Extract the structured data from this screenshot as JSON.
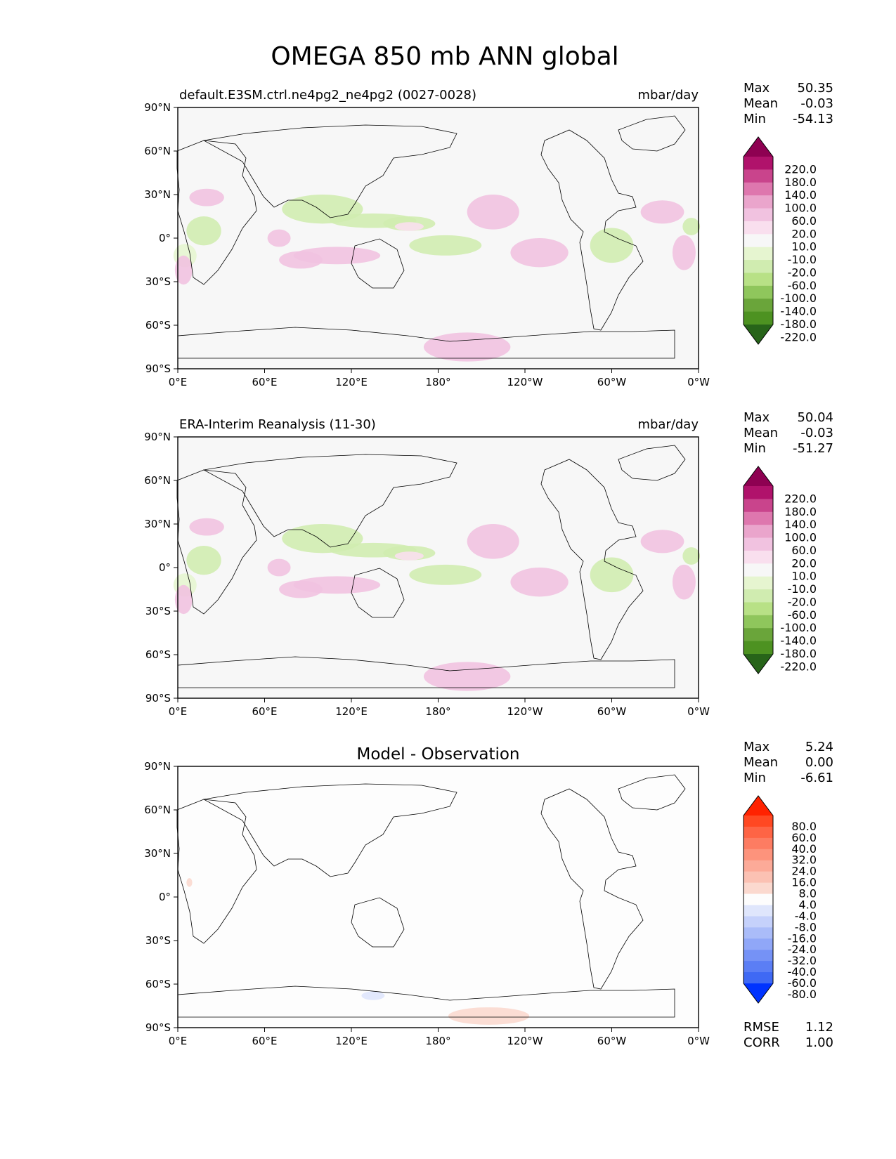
{
  "figure": {
    "title": "OMEGA 850 mb ANN global"
  },
  "chart_data": [
    {
      "type": "heatmap",
      "panel": "test",
      "title": "default.E3SM.ctrl.ne4pg2_ne4pg2 (0027-0028)",
      "units": "mbar/day",
      "stats": {
        "Max": "50.35",
        "Mean": "-0.03",
        "Min": "-54.13"
      },
      "x_ticks": [
        "0°E",
        "60°E",
        "120°E",
        "180°",
        "120°W",
        "60°W",
        "0°W"
      ],
      "y_ticks": [
        "90°N",
        "60°N",
        "30°N",
        "0°",
        "30°S",
        "60°S",
        "90°S"
      ],
      "xlim": [
        0,
        360
      ],
      "ylim": [
        -90,
        90
      ],
      "colorbar": {
        "levels": [
          "220.0",
          "180.0",
          "140.0",
          "100.0",
          "60.0",
          "20.0",
          "10.0",
          "-10.0",
          "-20.0",
          "-60.0",
          "-100.0",
          "-140.0",
          "-180.0",
          "-220.0"
        ],
        "colors": [
          "#8e0152",
          "#b0126b",
          "#c9448c",
          "#de77ae",
          "#eaa5cc",
          "#f1c2e0",
          "#f9dfee",
          "#f7f7f7",
          "#e6f5d0",
          "#d0ecb0",
          "#b8e186",
          "#8fc65c",
          "#6aa53a",
          "#4d9221",
          "#276419"
        ]
      },
      "anomalies": [
        {
          "lon": 20,
          "lat": 28,
          "rlon": 12,
          "rlat": 6,
          "value": 30
        },
        {
          "lon": 18,
          "lat": 5,
          "rlon": 12,
          "rlat": 10,
          "value": -30
        },
        {
          "lon": 5,
          "lat": -12,
          "rlon": 8,
          "rlat": 8,
          "value": -20
        },
        {
          "lon": 4,
          "lat": -22,
          "rlon": 6,
          "rlat": 10,
          "value": 40
        },
        {
          "lon": 100,
          "lat": 20,
          "rlon": 28,
          "rlat": 10,
          "value": -40
        },
        {
          "lon": 135,
          "lat": 12,
          "rlon": 30,
          "rlat": 5,
          "value": -50
        },
        {
          "lon": 160,
          "lat": 10,
          "rlon": 18,
          "rlat": 5,
          "value": -25
        },
        {
          "lon": 110,
          "lat": -12,
          "rlon": 30,
          "rlat": 6,
          "value": 30
        },
        {
          "lon": 85,
          "lat": -15,
          "rlon": 15,
          "rlat": 6,
          "value": 25
        },
        {
          "lon": 70,
          "lat": 0,
          "rlon": 8,
          "rlat": 6,
          "value": 20
        },
        {
          "lon": 185,
          "lat": -5,
          "rlon": 25,
          "rlat": 7,
          "value": -40
        },
        {
          "lon": 218,
          "lat": 18,
          "rlon": 18,
          "rlat": 12,
          "value": 35
        },
        {
          "lon": 250,
          "lat": -10,
          "rlon": 20,
          "rlat": 10,
          "value": 40
        },
        {
          "lon": 300,
          "lat": -5,
          "rlon": 15,
          "rlat": 12,
          "value": -40
        },
        {
          "lon": 335,
          "lat": 18,
          "rlon": 15,
          "rlat": 8,
          "value": 35
        },
        {
          "lon": 350,
          "lat": -10,
          "rlon": 8,
          "rlat": 12,
          "value": 35
        },
        {
          "lon": 355,
          "lat": 8,
          "rlon": 6,
          "rlat": 6,
          "value": -25
        },
        {
          "lon": 200,
          "lat": -75,
          "rlon": 30,
          "rlat": 10,
          "value": 25
        },
        {
          "lon": 160,
          "lat": 8,
          "rlon": 10,
          "rlat": 3,
          "value": 15
        }
      ]
    },
    {
      "type": "heatmap",
      "panel": "reference",
      "title": "ERA-Interim Reanalysis (11-30)",
      "units": "mbar/day",
      "stats": {
        "Max": "50.04",
        "Mean": "-0.03",
        "Min": "-51.27"
      },
      "x_ticks": [
        "0°E",
        "60°E",
        "120°E",
        "180°",
        "120°W",
        "60°W",
        "0°W"
      ],
      "y_ticks": [
        "90°N",
        "60°N",
        "30°N",
        "0°",
        "30°S",
        "60°S",
        "90°S"
      ],
      "xlim": [
        0,
        360
      ],
      "ylim": [
        -90,
        90
      ],
      "colorbar": {
        "levels": [
          "220.0",
          "180.0",
          "140.0",
          "100.0",
          "60.0",
          "20.0",
          "10.0",
          "-10.0",
          "-20.0",
          "-60.0",
          "-100.0",
          "-140.0",
          "-180.0",
          "-220.0"
        ],
        "colors": [
          "#8e0152",
          "#b0126b",
          "#c9448c",
          "#de77ae",
          "#eaa5cc",
          "#f1c2e0",
          "#f9dfee",
          "#f7f7f7",
          "#e6f5d0",
          "#d0ecb0",
          "#b8e186",
          "#8fc65c",
          "#6aa53a",
          "#4d9221",
          "#276419"
        ]
      },
      "anomalies": [
        {
          "lon": 20,
          "lat": 28,
          "rlon": 12,
          "rlat": 6,
          "value": 30
        },
        {
          "lon": 18,
          "lat": 5,
          "rlon": 12,
          "rlat": 10,
          "value": -30
        },
        {
          "lon": 5,
          "lat": -12,
          "rlon": 8,
          "rlat": 8,
          "value": -20
        },
        {
          "lon": 4,
          "lat": -22,
          "rlon": 6,
          "rlat": 10,
          "value": 40
        },
        {
          "lon": 100,
          "lat": 20,
          "rlon": 28,
          "rlat": 10,
          "value": -40
        },
        {
          "lon": 135,
          "lat": 12,
          "rlon": 30,
          "rlat": 5,
          "value": -50
        },
        {
          "lon": 160,
          "lat": 10,
          "rlon": 18,
          "rlat": 5,
          "value": -25
        },
        {
          "lon": 110,
          "lat": -12,
          "rlon": 30,
          "rlat": 6,
          "value": 30
        },
        {
          "lon": 85,
          "lat": -15,
          "rlon": 15,
          "rlat": 6,
          "value": 25
        },
        {
          "lon": 70,
          "lat": 0,
          "rlon": 8,
          "rlat": 6,
          "value": 20
        },
        {
          "lon": 185,
          "lat": -5,
          "rlon": 25,
          "rlat": 7,
          "value": -40
        },
        {
          "lon": 218,
          "lat": 18,
          "rlon": 18,
          "rlat": 12,
          "value": 35
        },
        {
          "lon": 250,
          "lat": -10,
          "rlon": 20,
          "rlat": 10,
          "value": 40
        },
        {
          "lon": 300,
          "lat": -5,
          "rlon": 15,
          "rlat": 12,
          "value": -40
        },
        {
          "lon": 335,
          "lat": 18,
          "rlon": 15,
          "rlat": 8,
          "value": 35
        },
        {
          "lon": 350,
          "lat": -10,
          "rlon": 8,
          "rlat": 12,
          "value": 35
        },
        {
          "lon": 355,
          "lat": 8,
          "rlon": 6,
          "rlat": 6,
          "value": -25
        },
        {
          "lon": 200,
          "lat": -75,
          "rlon": 30,
          "rlat": 10,
          "value": 25
        },
        {
          "lon": 160,
          "lat": 8,
          "rlon": 10,
          "rlat": 3,
          "value": 15
        }
      ]
    },
    {
      "type": "heatmap",
      "panel": "difference",
      "title": "Model - Observation",
      "units": "",
      "stats": {
        "Max": "5.24",
        "Mean": "0.00",
        "Min": "-6.61"
      },
      "metrics": {
        "RMSE": "1.12",
        "CORR": "1.00"
      },
      "x_ticks": [
        "0°E",
        "60°E",
        "120°E",
        "180°",
        "120°W",
        "60°W",
        "0°W"
      ],
      "y_ticks": [
        "90°N",
        "60°N",
        "30°N",
        "0°",
        "30°S",
        "60°S",
        "90°S"
      ],
      "xlim": [
        0,
        360
      ],
      "ylim": [
        -90,
        90
      ],
      "colorbar": {
        "levels": [
          "80.0",
          "60.0",
          "40.0",
          "32.0",
          "24.0",
          "16.0",
          "8.0",
          "4.0",
          "-4.0",
          "-8.0",
          "-16.0",
          "-24.0",
          "-32.0",
          "-40.0",
          "-60.0",
          "-80.0"
        ],
        "colors": [
          "#ff2200",
          "#ff4822",
          "#fe6445",
          "#fd7c62",
          "#fd937c",
          "#fcaa98",
          "#fbc1b3",
          "#fbd9cf",
          "#fdfdfd",
          "#dfe6fc",
          "#c5d1fb",
          "#aabcf9",
          "#90a7f8",
          "#7592f6",
          "#5b7ef5",
          "#3f69f4",
          "#0033ff"
        ]
      },
      "anomalies": [
        {
          "lon": 8,
          "lat": 10,
          "rlon": 2,
          "rlat": 3,
          "value": 5
        },
        {
          "lon": 135,
          "lat": -68,
          "rlon": 8,
          "rlat": 3,
          "value": -5
        },
        {
          "lon": 215,
          "lat": -82,
          "rlon": 28,
          "rlat": 6,
          "value": 5
        }
      ]
    }
  ]
}
